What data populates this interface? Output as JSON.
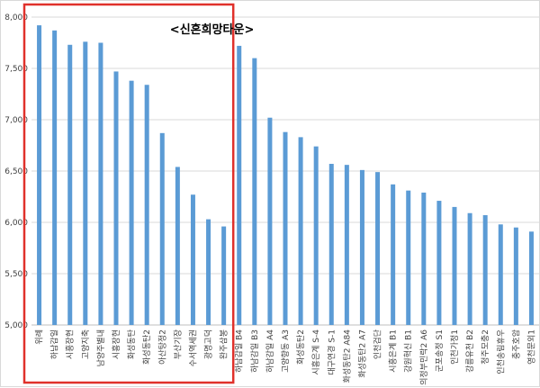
{
  "chart_data": {
    "type": "bar",
    "title": "",
    "xlabel": "",
    "ylabel": "",
    "ylim": [
      5000,
      8000
    ],
    "yticks": [
      "5,000",
      "5,500",
      "6,000",
      "6,500",
      "7,000",
      "7,500",
      "8,000"
    ],
    "grid": true,
    "categories": [
      "위례",
      "하남감일",
      "시흥장현",
      "고양지축",
      "남양주별내",
      "시흥장현",
      "화성동탄",
      "화성동탄2",
      "아산탕정2",
      "부산기장",
      "수서역세권",
      "광명고덕",
      "완주삼봉",
      "하남감일 B4",
      "하남감일 B3",
      "하남감일 A4",
      "고양향동 A3",
      "화성동탄2",
      "시흥은계 S-4",
      "대구연경 S-1",
      "화성동탄2 A84",
      "화성동탄2 A7",
      "인천검단",
      "시흥은계 B1",
      "강원혁신 B1",
      "의정부민락2 A6",
      "군포송정 S1",
      "인천가정1",
      "강릉유천 B2",
      "청주모충2",
      "인천송림휴우",
      "충주호암",
      "영천문외1"
    ],
    "values": [
      7920,
      7870,
      7730,
      7760,
      7750,
      7470,
      7380,
      7340,
      6870,
      6540,
      6270,
      6030,
      5960,
      7720,
      7600,
      7020,
      6880,
      6830,
      6740,
      6570,
      6560,
      6510,
      6490,
      6370,
      6310,
      6290,
      6210,
      6150,
      6090,
      6070,
      5980,
      5950,
      5910
    ],
    "series_color": "#5b9bd5",
    "highlight": {
      "label": "<신혼희망타운>",
      "count": 13,
      "border_color": "#e0312b"
    }
  }
}
